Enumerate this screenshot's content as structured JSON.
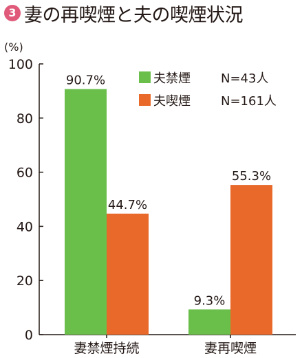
{
  "header": {
    "number": "3",
    "title": "妻の再喫煙と夫の喫煙状況"
  },
  "colors": {
    "badge": "#e05a7a",
    "series_nonsmoking_husband": "#6abf4b",
    "series_smoking_husband": "#e8692a",
    "axis": "#231815"
  },
  "chart_data": {
    "type": "bar",
    "ylabel": "(%)",
    "ylim": [
      0,
      100
    ],
    "yticks": [
      0,
      20,
      40,
      60,
      80,
      100
    ],
    "grid": false,
    "legend_position": "top-right",
    "categories": [
      "妻禁煙持続",
      "妻再喫煙"
    ],
    "series": [
      {
        "name": "夫禁煙",
        "n_label": "N=43人",
        "values": [
          90.7,
          9.3
        ],
        "value_labels": [
          "90.7%",
          "9.3%"
        ]
      },
      {
        "name": "夫喫煙",
        "n_label": "N=161人",
        "values": [
          44.7,
          55.3
        ],
        "value_labels": [
          "44.7%",
          "55.3%"
        ]
      }
    ]
  }
}
